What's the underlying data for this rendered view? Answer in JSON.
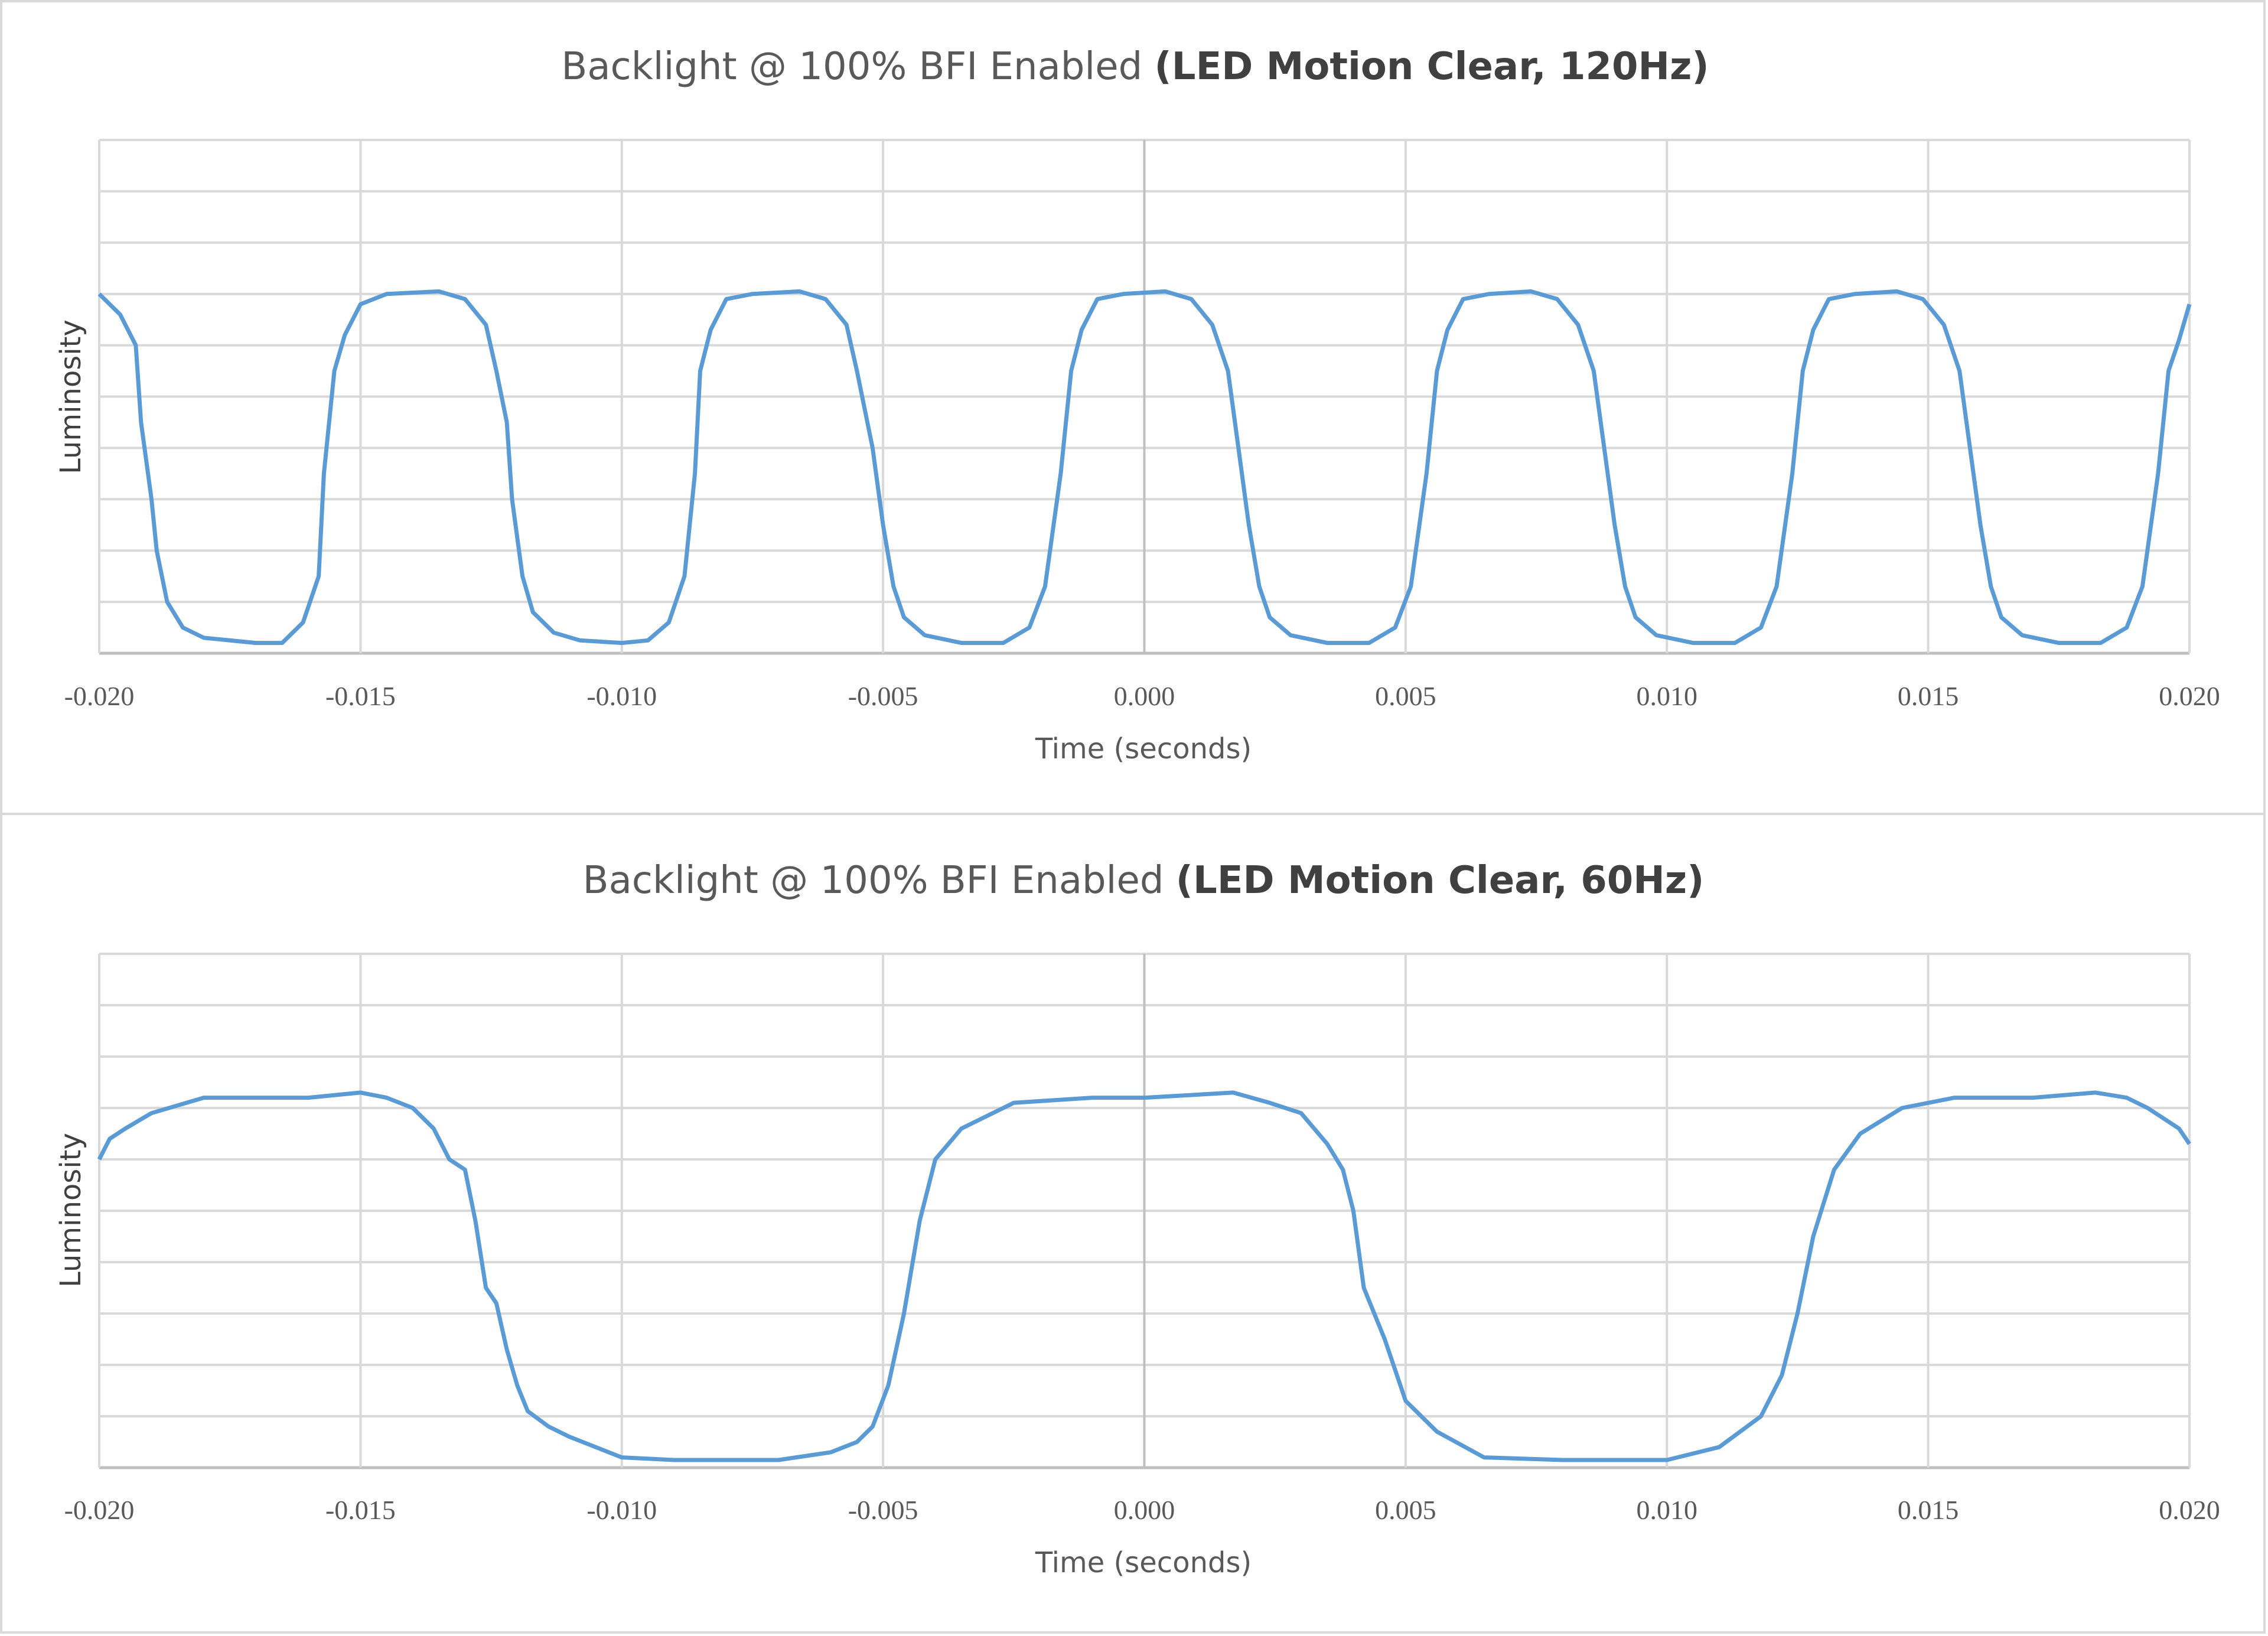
{
  "chart_data": [
    {
      "type": "line",
      "title_regular": "Backlight @ 100% BFI Enabled ",
      "title_bold": "(LED Motion Clear, 120Hz)",
      "xlabel": "Time (seconds)",
      "ylabel": "Luminosity",
      "xlim": [
        -0.02,
        0.02
      ],
      "ylim": [
        0,
        10
      ],
      "x_ticks": [
        "-0.020",
        "-0.015",
        "-0.010",
        "-0.005",
        "0.000",
        "0.005",
        "0.010",
        "0.015",
        "0.020"
      ],
      "grid": true,
      "line_color": "#5b9bd5",
      "series": [
        {
          "name": "Luminosity",
          "x": [
            -0.02,
            -0.0196,
            -0.0193,
            -0.0192,
            -0.019,
            -0.0189,
            -0.0187,
            -0.0184,
            -0.018,
            -0.017,
            -0.0165,
            -0.0161,
            -0.0158,
            -0.0157,
            -0.0155,
            -0.0153,
            -0.015,
            -0.0145,
            -0.0135,
            -0.013,
            -0.0126,
            -0.0124,
            -0.0122,
            -0.0121,
            -0.0119,
            -0.0117,
            -0.0113,
            -0.0108,
            -0.01,
            -0.0095,
            -0.0091,
            -0.0088,
            -0.0086,
            -0.0085,
            -0.0083,
            -0.008,
            -0.0075,
            -0.0066,
            -0.0061,
            -0.0057,
            -0.0055,
            -0.0052,
            -0.005,
            -0.0048,
            -0.0046,
            -0.0042,
            -0.0035,
            -0.0027,
            -0.0022,
            -0.0019,
            -0.0016,
            -0.0014,
            -0.0012,
            -0.0009,
            -0.0004,
            0.0004,
            0.0009,
            0.0013,
            0.0016,
            0.0018,
            0.002,
            0.0022,
            0.0024,
            0.0028,
            0.0035,
            0.0043,
            0.0048,
            0.0051,
            0.0054,
            0.0056,
            0.0058,
            0.0061,
            0.0066,
            0.0074,
            0.0079,
            0.0083,
            0.0086,
            0.0088,
            0.009,
            0.0092,
            0.0094,
            0.0098,
            0.0105,
            0.0113,
            0.0118,
            0.0121,
            0.0124,
            0.0126,
            0.0128,
            0.0131,
            0.0136,
            0.0144,
            0.0149,
            0.0153,
            0.0156,
            0.0158,
            0.016,
            0.0162,
            0.0164,
            0.0168,
            0.0175,
            0.0183,
            0.0188,
            0.0191,
            0.0194,
            0.0196,
            0.0198,
            0.02
          ],
          "y": [
            7.0,
            6.6,
            6.0,
            4.5,
            3.0,
            2.0,
            1.0,
            0.5,
            0.3,
            0.2,
            0.2,
            0.6,
            1.5,
            3.5,
            5.5,
            6.2,
            6.8,
            7.0,
            7.05,
            6.9,
            6.4,
            5.5,
            4.5,
            3.0,
            1.5,
            0.8,
            0.4,
            0.25,
            0.2,
            0.25,
            0.6,
            1.5,
            3.5,
            5.5,
            6.3,
            6.9,
            7.0,
            7.05,
            6.9,
            6.4,
            5.5,
            4.0,
            2.5,
            1.3,
            0.7,
            0.35,
            0.2,
            0.2,
            0.5,
            1.3,
            3.5,
            5.5,
            6.3,
            6.9,
            7.0,
            7.05,
            6.9,
            6.4,
            5.5,
            4.0,
            2.5,
            1.3,
            0.7,
            0.35,
            0.2,
            0.2,
            0.5,
            1.3,
            3.5,
            5.5,
            6.3,
            6.9,
            7.0,
            7.05,
            6.9,
            6.4,
            5.5,
            4.0,
            2.5,
            1.3,
            0.7,
            0.35,
            0.2,
            0.2,
            0.5,
            1.3,
            3.5,
            5.5,
            6.3,
            6.9,
            7.0,
            7.05,
            6.9,
            6.4,
            5.5,
            4.0,
            2.5,
            1.3,
            0.7,
            0.35,
            0.2,
            0.2,
            0.5,
            1.3,
            3.5,
            5.5,
            6.1,
            6.8
          ]
        }
      ]
    },
    {
      "type": "line",
      "title_regular": "Backlight @ 100% BFI Enabled ",
      "title_bold": "(LED Motion Clear, 60Hz)",
      "xlabel": "Time (seconds)",
      "ylabel": "Luminosity",
      "xlim": [
        -0.02,
        0.02
      ],
      "ylim": [
        0,
        10
      ],
      "x_ticks": [
        "-0.020",
        "-0.015",
        "-0.010",
        "-0.005",
        "0.000",
        "0.005",
        "0.010",
        "0.015",
        "0.020"
      ],
      "grid": true,
      "line_color": "#5b9bd5",
      "series": [
        {
          "name": "Luminosity",
          "x": [
            -0.02,
            -0.0198,
            -0.0195,
            -0.019,
            -0.018,
            -0.017,
            -0.016,
            -0.015,
            -0.0145,
            -0.014,
            -0.0136,
            -0.0133,
            -0.013,
            -0.0128,
            -0.0126,
            -0.0124,
            -0.0122,
            -0.012,
            -0.0118,
            -0.0114,
            -0.011,
            -0.01,
            -0.009,
            -0.007,
            -0.006,
            -0.0055,
            -0.0052,
            -0.0049,
            -0.0046,
            -0.0043,
            -0.004,
            -0.0035,
            -0.0025,
            -0.001,
            0.0,
            0.0017,
            0.0024,
            0.003,
            0.0035,
            0.0038,
            0.004,
            0.0042,
            0.0046,
            0.005,
            0.0056,
            0.0065,
            0.008,
            0.01,
            0.011,
            0.0118,
            0.0122,
            0.0125,
            0.0128,
            0.0132,
            0.0137,
            0.0145,
            0.0155,
            0.017,
            0.0182,
            0.0188,
            0.0192,
            0.0198,
            0.02
          ],
          "y": [
            6.0,
            6.4,
            6.6,
            6.9,
            7.2,
            7.2,
            7.2,
            7.3,
            7.2,
            7.0,
            6.6,
            6.0,
            5.8,
            4.8,
            3.5,
            3.2,
            2.3,
            1.6,
            1.1,
            0.8,
            0.6,
            0.2,
            0.15,
            0.15,
            0.3,
            0.5,
            0.8,
            1.6,
            3.0,
            4.8,
            6.0,
            6.6,
            7.1,
            7.2,
            7.2,
            7.3,
            7.1,
            6.9,
            6.3,
            5.8,
            5.0,
            3.5,
            2.5,
            1.3,
            0.7,
            0.2,
            0.15,
            0.15,
            0.4,
            1.0,
            1.8,
            3.0,
            4.5,
            5.8,
            6.5,
            7.0,
            7.2,
            7.2,
            7.3,
            7.2,
            7.0,
            6.6,
            6.3
          ]
        }
      ]
    }
  ]
}
